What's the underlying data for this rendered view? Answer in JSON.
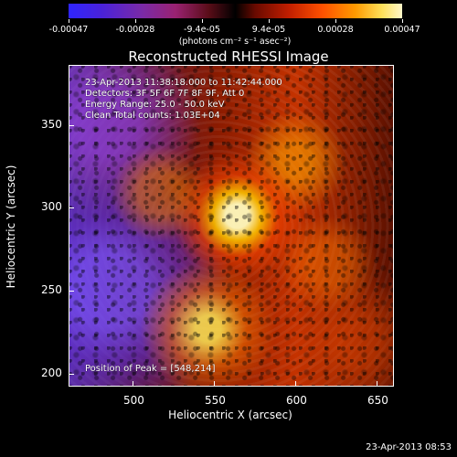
{
  "colorbar": {
    "ticks": [
      "-0.00047",
      "-0.00028",
      "-9.4e-05",
      "9.4e-05",
      "0.00028",
      "0.00047"
    ],
    "units": "(photons cm⁻² s⁻¹ asec⁻²)"
  },
  "plot": {
    "title": "Reconstructed RHESSI Image",
    "info_lines": [
      "23-Apr-2013 11:38:18.000 to 11:42:44.000",
      "Detectors: 3F 5F 6F 7F 8F 9F, Att 0",
      "Energy Range: 25.0 - 50.0 keV",
      "Clean     Total counts: 1.03E+04"
    ],
    "peak_text": "Position of Peak = [548,214]",
    "x_label": "Heliocentric X (arcsec)",
    "y_label": "Heliocentric Y (arcsec)",
    "x_ticks": [
      "500",
      "550",
      "600",
      "650"
    ],
    "y_ticks": [
      "350",
      "300",
      "250",
      "200"
    ]
  },
  "footer": {
    "timestamp": "23-Apr-2013 08:53"
  }
}
